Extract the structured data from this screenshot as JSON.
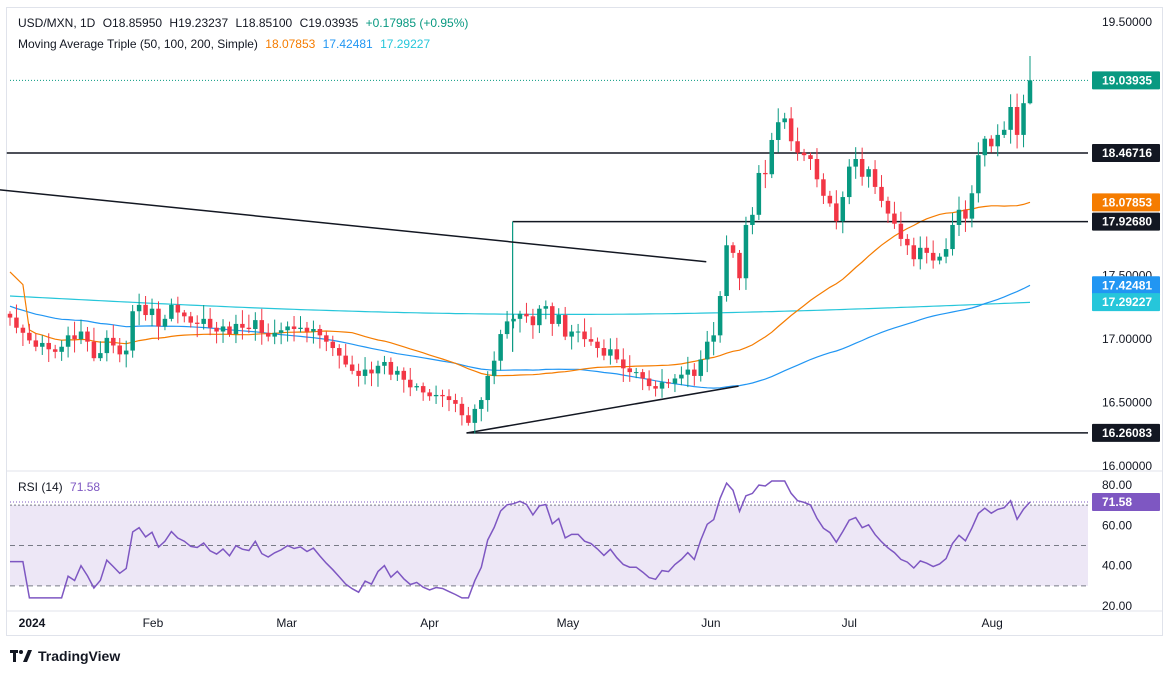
{
  "header": {
    "symbol": "USD/MXN, 1D",
    "open": "O18.85950",
    "high": "H19.23237",
    "low": "L18.85100",
    "close": "C19.03935",
    "change": "+0.17985 (+0.95%)",
    "indicator_name": "Moving Average Triple (50, 100, 200, Simple)",
    "ma50_value": "18.07853",
    "ma100_value": "17.42481",
    "ma200_value": "17.29227",
    "rsi_label": "RSI (14)",
    "rsi_value": "71.58"
  },
  "brand": {
    "name": "TradingView"
  },
  "colors": {
    "up": "#089981",
    "down": "#f23645",
    "ma50": "#f57c00",
    "ma100": "#2196f3",
    "ma200": "#26c6da",
    "rsi": "#7e57c2",
    "rsi_band": "#ede7f6",
    "level": "#131722"
  },
  "chart_data": [
    {
      "type": "candlestick",
      "title": "USD/MXN, 1D",
      "ylim": [
        16.0,
        19.5
      ],
      "y_ticks": [
        "19.50000",
        "17.50000",
        "17.00000",
        "16.50000",
        "16.00000"
      ],
      "x_ticks": [
        "2024",
        "Feb",
        "Mar",
        "Apr",
        "May",
        "Jun",
        "Jul",
        "Aug"
      ],
      "price_tags": [
        {
          "label": "19.03935",
          "value": 19.03935,
          "color": "#089981"
        },
        {
          "label": "18.46716",
          "value": 18.46716,
          "color": "#131722"
        },
        {
          "label": "18.07853",
          "value": 18.07853,
          "color": "#f57c00"
        },
        {
          "label": "17.92680",
          "value": 17.9268,
          "color": "#131722"
        },
        {
          "label": "17.42481",
          "value": 17.42481,
          "color": "#2196f3"
        },
        {
          "label": "17.29227",
          "value": 17.29227,
          "color": "#26c6da"
        },
        {
          "label": "16.26083",
          "value": 16.26083,
          "color": "#131722"
        }
      ],
      "horizontal_levels": [
        {
          "value": 18.46716,
          "from": "start",
          "to": "end"
        },
        {
          "value": 17.9268,
          "from": "2024-04-19",
          "to": "end"
        },
        {
          "value": 16.26083,
          "from": "2024-04-09",
          "to": "end"
        }
      ],
      "trendlines": [
        {
          "from": [
            "2023-12-29",
            18.18
          ],
          "to": [
            "2024-05-31",
            17.61
          ]
        },
        {
          "from": [
            "2024-04-09",
            16.26
          ],
          "to": [
            "2024-06-07",
            16.63
          ]
        }
      ],
      "current_price": 19.03935,
      "close_series": [
        17.17,
        17.09,
        17.05,
        16.99,
        16.94,
        16.97,
        16.92,
        16.9,
        16.94,
        17.03,
        17.0,
        17.06,
        16.98,
        16.85,
        16.89,
        17.01,
        16.95,
        16.88,
        16.91,
        17.22,
        17.27,
        17.19,
        17.24,
        17.1,
        17.16,
        17.27,
        17.21,
        17.18,
        17.13,
        17.12,
        17.16,
        17.09,
        17.06,
        17.1,
        17.04,
        17.12,
        17.09,
        17.08,
        17.15,
        17.05,
        17.02,
        17.05,
        17.07,
        17.1,
        17.08,
        17.09,
        17.06,
        17.08,
        17.03,
        16.98,
        16.93,
        16.87,
        16.8,
        16.75,
        16.71,
        16.76,
        16.73,
        16.79,
        16.82,
        16.72,
        16.75,
        16.68,
        16.62,
        16.63,
        16.58,
        16.55,
        16.56,
        16.55,
        16.52,
        16.49,
        16.4,
        16.34,
        16.45,
        16.52,
        16.71,
        16.83,
        17.04,
        17.14,
        17.16,
        17.2,
        17.18,
        17.11,
        17.24,
        17.26,
        17.12,
        17.19,
        17.02,
        17.06,
        17.06,
        17.0,
        16.98,
        16.93,
        16.87,
        16.92,
        16.84,
        16.77,
        16.74,
        16.74,
        16.69,
        16.63,
        16.61,
        16.66,
        16.65,
        16.69,
        16.72,
        16.76,
        16.71,
        16.84,
        16.98,
        17.03,
        17.34,
        17.74,
        17.68,
        17.48,
        17.9,
        17.98,
        18.31,
        18.3,
        18.57,
        18.71,
        18.74,
        18.56,
        18.47,
        18.45,
        18.42,
        18.26,
        18.13,
        18.07,
        17.93,
        18.12,
        18.36,
        18.42,
        18.28,
        18.34,
        18.2,
        18.09,
        17.99,
        17.91,
        17.79,
        17.74,
        17.63,
        17.72,
        17.68,
        17.62,
        17.65,
        17.71,
        17.9,
        18.02,
        17.95,
        18.15,
        18.45,
        18.58,
        18.52,
        18.61,
        18.65,
        18.83,
        18.61,
        18.86,
        19.04
      ],
      "series": [
        {
          "name": "MA 50",
          "value": 18.07853
        },
        {
          "name": "MA 100",
          "value": 17.42481
        },
        {
          "name": "MA 200",
          "value": 17.29227
        }
      ]
    },
    {
      "type": "line",
      "title": "RSI (14)",
      "ylim": [
        20,
        80
      ],
      "y_ticks": [
        "80.00",
        "60.00",
        "40.00",
        "20.00"
      ],
      "bands": [
        30,
        50,
        70
      ],
      "current_value": 71.58,
      "current_label": "71.58"
    }
  ]
}
